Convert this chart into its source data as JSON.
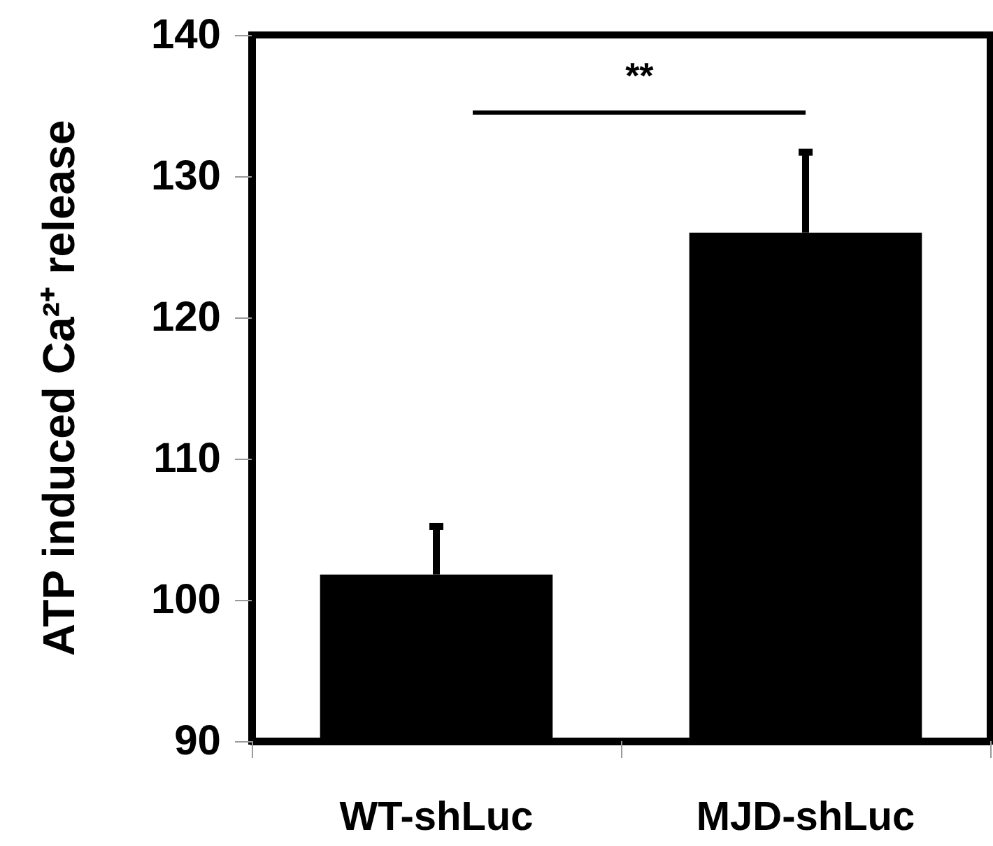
{
  "chart_data": {
    "type": "bar",
    "ylabel": "ATP induced Ca²⁺ release",
    "categories": [
      "WT-shLuc",
      "MJD-shLuc"
    ],
    "values": [
      101.8,
      126.0
    ],
    "errors": [
      [
        101.8,
        105.2
      ],
      [
        126.0,
        131.7
      ]
    ],
    "color": "#000000",
    "ylim": [
      90,
      140
    ],
    "yticks": [
      90,
      100,
      110,
      120,
      130,
      140
    ],
    "grid": false,
    "annotations": [
      "**"
    ]
  }
}
